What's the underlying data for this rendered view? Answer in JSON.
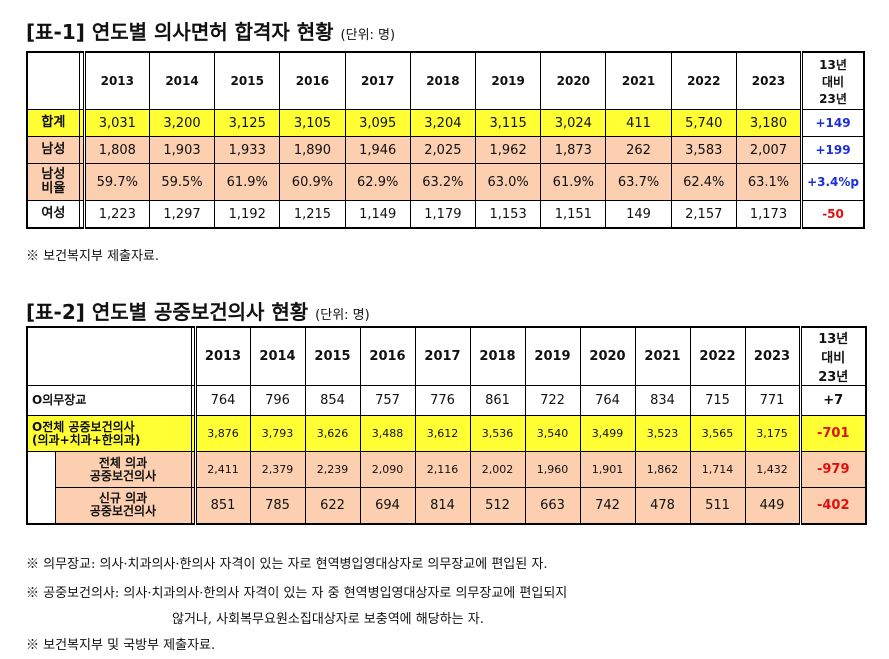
{
  "table1": {
    "title": "[표-1] 연도별 의사면허 합격자 현황",
    "unit": "(단위: 명)",
    "years": [
      "2013",
      "2014",
      "2015",
      "2016",
      "2017",
      "2018",
      "2019",
      "2020",
      "2021",
      "2022",
      "2023"
    ],
    "diff_header": [
      "13년",
      "대비",
      "23년"
    ],
    "rows": [
      {
        "label": [
          "합계"
        ],
        "values": [
          "3,031",
          "3,200",
          "3,125",
          "3,105",
          "3,095",
          "3,204",
          "3,115",
          "3,024",
          "411",
          "5,740",
          "3,180"
        ],
        "diff": "+149",
        "diff_color": "blue",
        "style": "hl"
      },
      {
        "label": [
          "남성"
        ],
        "values": [
          "1,808",
          "1,903",
          "1,933",
          "1,890",
          "1,946",
          "2,025",
          "1,962",
          "1,873",
          "262",
          "3,583",
          "2,007"
        ],
        "diff": "+199",
        "diff_color": "blue",
        "style": "pk"
      },
      {
        "label": [
          "남성",
          "비율"
        ],
        "values": [
          "59.7%",
          "59.5%",
          "61.9%",
          "60.9%",
          "62.9%",
          "63.2%",
          "63.0%",
          "61.9%",
          "63.7%",
          "62.4%",
          "63.1%"
        ],
        "diff": "+3.4%p",
        "diff_color": "blue",
        "style": "pk"
      },
      {
        "label": [
          "여성"
        ],
        "values": [
          "1,223",
          "1,297",
          "1,192",
          "1,215",
          "1,149",
          "1,179",
          "1,153",
          "1,151",
          "149",
          "2,157",
          "1,173"
        ],
        "diff": "-50",
        "diff_color": "red",
        "style": "plain"
      }
    ],
    "note": "※ 보건복지부 제출자료."
  },
  "table2": {
    "title": "[표-2] 연도별 공중보건의사 현황",
    "unit": "(단위: 명)",
    "years": [
      "2013",
      "2014",
      "2015",
      "2016",
      "2017",
      "2018",
      "2019",
      "2020",
      "2021",
      "2022",
      "2023"
    ],
    "diff_header": [
      "13년",
      "대비",
      "23년"
    ],
    "rows": [
      {
        "label": [
          "O의무장교"
        ],
        "values": [
          "764",
          "796",
          "854",
          "757",
          "776",
          "861",
          "722",
          "764",
          "834",
          "715",
          "771"
        ],
        "diff": "+7",
        "diff_color": "black",
        "style": "plain",
        "indent": false,
        "small": false
      },
      {
        "label": [
          "O전체 공중보건의사",
          "(의과+치과+한의과)"
        ],
        "values": [
          "3,876",
          "3,793",
          "3,626",
          "3,488",
          "3,612",
          "3,536",
          "3,540",
          "3,499",
          "3,523",
          "3,565",
          "3,175"
        ],
        "diff": "-701",
        "diff_color": "red",
        "style": "hl",
        "indent": false,
        "small": true
      },
      {
        "label": [
          "전체 의과",
          "공중보건의사"
        ],
        "values": [
          "2,411",
          "2,379",
          "2,239",
          "2,090",
          "2,116",
          "2,002",
          "1,960",
          "1,901",
          "1,862",
          "1,714",
          "1,432"
        ],
        "diff": "-979",
        "diff_color": "red",
        "style": "pk",
        "indent": true,
        "small": true
      },
      {
        "label": [
          "신규 의과",
          "공중보건의사"
        ],
        "values": [
          "851",
          "785",
          "622",
          "694",
          "814",
          "512",
          "663",
          "742",
          "478",
          "511",
          "449"
        ],
        "diff": "-402",
        "diff_color": "red",
        "style": "pk",
        "indent": true,
        "small": false
      }
    ],
    "notes": [
      "※ 의무장교: 의사·치과의사·한의사 자격이 있는 자로 현역병입영대상자로 의무장교에 편입된 자.",
      "※ 공중보건의사: 의사·치과의사·한의사 자격이 있는 자 중 현역병입영대상자로 의무장교에 편입되지",
      "않거나, 사회복무요원소집대상자로 보충역에 해당하는 자.",
      "※ 보건복지부 및 국방부 제출자료."
    ]
  }
}
